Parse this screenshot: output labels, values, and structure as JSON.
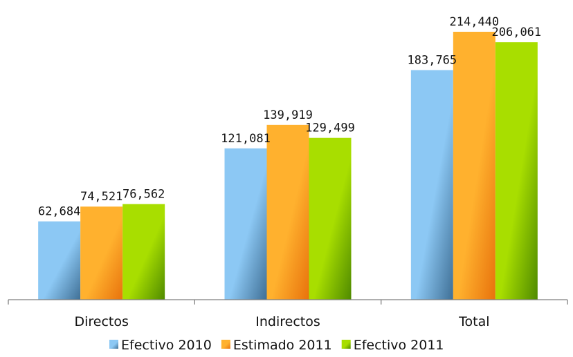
{
  "chart_data": {
    "type": "bar",
    "title": "",
    "xlabel": "",
    "ylabel": "",
    "ylim": [
      0,
      214440
    ],
    "grid": false,
    "legend_position": "bottom",
    "categories": [
      "Directos",
      "Indirectos",
      "Total"
    ],
    "series": [
      {
        "name": "Efectivo 2010",
        "values": [
          62684,
          121081,
          183765
        ],
        "labels": [
          "62,684",
          "121,081",
          "183,765"
        ],
        "color_light": "#8cc8f4",
        "color_dark": "#3f6f95",
        "swatch": "#5b9bd5"
      },
      {
        "name": "Estimado 2011",
        "values": [
          74521,
          139919,
          214440
        ],
        "labels": [
          "74,521",
          "139,919",
          "214,440"
        ],
        "color_light": "#ffb12e",
        "color_dark": "#e8720c",
        "swatch": "#fb8c00"
      },
      {
        "name": "Efectivo 2011",
        "values": [
          76562,
          129499,
          206061
        ],
        "labels": [
          "76,562",
          "129,499",
          "206,061"
        ],
        "color_light": "#a8de00",
        "color_dark": "#4f8a00",
        "swatch": "#7cb800"
      }
    ]
  }
}
